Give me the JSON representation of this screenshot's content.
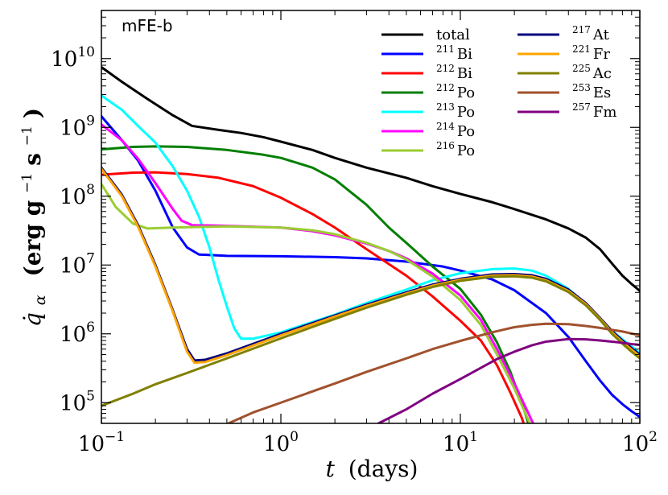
{
  "chart_data": {
    "type": "line",
    "panel_label": "mFE-b",
    "xlabel": {
      "var": "t",
      "unit": "(days)"
    },
    "ylabel": {
      "var": "q̇",
      "sub": "α",
      "unit_parts": [
        "(erg g",
        "−1",
        " s",
        "−1",
        ")"
      ]
    },
    "x_scale": "log",
    "y_scale": "log",
    "xlim": [
      0.1,
      100
    ],
    "ylim": [
      50000,
      50000000000
    ],
    "x_ticks": [
      {
        "value": 0.1,
        "base": "10",
        "exp": "−1"
      },
      {
        "value": 1,
        "base": "10",
        "exp": "0"
      },
      {
        "value": 10,
        "base": "10",
        "exp": "1"
      },
      {
        "value": 100,
        "base": "10",
        "exp": "2"
      }
    ],
    "y_ticks": [
      {
        "value": 100000,
        "base": "10",
        "exp": "5"
      },
      {
        "value": 1000000,
        "base": "10",
        "exp": "6"
      },
      {
        "value": 10000000,
        "base": "10",
        "exp": "7"
      },
      {
        "value": 100000000,
        "base": "10",
        "exp": "8"
      },
      {
        "value": 1000000000,
        "base": "10",
        "exp": "9"
      },
      {
        "value": 10000000000,
        "base": "10",
        "exp": "10"
      }
    ],
    "grid": false,
    "legend_position": "top-right",
    "series": [
      {
        "name": "total",
        "sup": "",
        "el": "",
        "color": "#000000",
        "points": [
          [
            0.1,
            7500000000.0
          ],
          [
            0.13,
            4600000000.0
          ],
          [
            0.18,
            2600000000.0
          ],
          [
            0.25,
            1500000000.0
          ],
          [
            0.32,
            1050000000.0
          ],
          [
            0.45,
            920000000.0
          ],
          [
            0.6,
            830000000.0
          ],
          [
            0.8,
            720000000.0
          ],
          [
            1,
            620000000.0
          ],
          [
            1.5,
            470000000.0
          ],
          [
            2,
            360000000.0
          ],
          [
            3,
            260000000.0
          ],
          [
            5,
            185000000.0
          ],
          [
            7,
            140000000.0
          ],
          [
            10,
            108000000.0
          ],
          [
            15,
            82000000.0
          ],
          [
            20,
            65000000.0
          ],
          [
            30,
            46000000.0
          ],
          [
            40,
            34000000.0
          ],
          [
            50,
            25000000.0
          ],
          [
            60,
            17000000.0
          ],
          [
            70,
            10500000.0
          ],
          [
            80,
            7000000.0
          ],
          [
            90,
            5300000.0
          ],
          [
            100,
            4200000.0
          ]
        ]
      },
      {
        "name": "",
        "sup": "211",
        "el": "Bi",
        "color": "#0000ff",
        "points": [
          [
            0.1,
            1450000000.0
          ],
          [
            0.13,
            650000000.0
          ],
          [
            0.16,
            330000000.0
          ],
          [
            0.2,
            120000000.0
          ],
          [
            0.25,
            35000000.0
          ],
          [
            0.3,
            18000000.0
          ],
          [
            0.35,
            14200000.0
          ],
          [
            0.5,
            13600000.0
          ],
          [
            1,
            13400000.0
          ],
          [
            2,
            13000000.0
          ],
          [
            3,
            12500000.0
          ],
          [
            5,
            11200000.0
          ],
          [
            8,
            9500000.0
          ],
          [
            10,
            8300000.0
          ],
          [
            15,
            6200000.0
          ],
          [
            20,
            4300000.0
          ],
          [
            30,
            2000000.0
          ],
          [
            40,
            900000.0
          ],
          [
            50,
            400000.0
          ],
          [
            60,
            210000.0
          ],
          [
            70,
            130000.0
          ],
          [
            80,
            95000.0
          ],
          [
            90,
            75000.0
          ],
          [
            100,
            62000.0
          ]
        ]
      },
      {
        "name": "",
        "sup": "212",
        "el": "Bi",
        "color": "#ff0000",
        "points": [
          [
            0.1,
            205000000.0
          ],
          [
            0.15,
            220000000.0
          ],
          [
            0.2,
            222000000.0
          ],
          [
            0.3,
            210000000.0
          ],
          [
            0.45,
            185000000.0
          ],
          [
            0.7,
            140000000.0
          ],
          [
            1,
            95000000.0
          ],
          [
            1.5,
            55000000.0
          ],
          [
            2,
            35000000.0
          ],
          [
            3,
            17000000.0
          ],
          [
            5,
            7000000.0
          ],
          [
            7,
            3500000.0
          ],
          [
            10,
            1550000.0
          ],
          [
            13,
            800000.0
          ],
          [
            16,
            350000.0
          ],
          [
            19,
            140000.0
          ],
          [
            22,
            60000.0
          ],
          [
            24,
            30000.0
          ]
        ]
      },
      {
        "name": "",
        "sup": "212",
        "el": "Po",
        "color": "#007f00",
        "points": [
          [
            0.1,
            480000000.0
          ],
          [
            0.15,
            520000000.0
          ],
          [
            0.2,
            530000000.0
          ],
          [
            0.3,
            520000000.0
          ],
          [
            0.5,
            470000000.0
          ],
          [
            0.8,
            400000000.0
          ],
          [
            1,
            360000000.0
          ],
          [
            1.5,
            260000000.0
          ],
          [
            2,
            175000000.0
          ],
          [
            3,
            75000000.0
          ],
          [
            4,
            35000000.0
          ],
          [
            5,
            21000000.0
          ],
          [
            7,
            9500000.0
          ],
          [
            10,
            4500000.0
          ],
          [
            13,
            1900000.0
          ],
          [
            16,
            750000.0
          ],
          [
            19,
            280000.0
          ],
          [
            22,
            100000.0
          ],
          [
            25,
            35000.0
          ]
        ]
      },
      {
        "name": "",
        "sup": "213",
        "el": "Po",
        "color": "#00ffff",
        "points": [
          [
            0.1,
            2900000000.0
          ],
          [
            0.13,
            1800000000.0
          ],
          [
            0.16,
            1050000000.0
          ],
          [
            0.2,
            600000000.0
          ],
          [
            0.25,
            270000000.0
          ],
          [
            0.3,
            120000000.0
          ],
          [
            0.35,
            50000000.0
          ],
          [
            0.4,
            18000000.0
          ],
          [
            0.45,
            6000000.0
          ],
          [
            0.5,
            2500000.0
          ],
          [
            0.55,
            1200000.0
          ],
          [
            0.6,
            850000.0
          ],
          [
            0.7,
            850000.0
          ],
          [
            1,
            1050000.0
          ],
          [
            2,
            1900000.0
          ],
          [
            3,
            2800000.0
          ],
          [
            5,
            4400000.0
          ],
          [
            7,
            6000000.0
          ],
          [
            10,
            7600000.0
          ],
          [
            15,
            8700000.0
          ],
          [
            20,
            8900000.0
          ],
          [
            25,
            8300000.0
          ],
          [
            30,
            7000000.0
          ],
          [
            40,
            4500000.0
          ],
          [
            50,
            2700000.0
          ],
          [
            60,
            1600000.0
          ],
          [
            70,
            1100000.0
          ],
          [
            80,
            830000.0
          ],
          [
            90,
            650000.0
          ],
          [
            100,
            530000.0
          ]
        ]
      },
      {
        "name": "",
        "sup": "214",
        "el": "Po",
        "color": "#ff00ff",
        "points": [
          [
            0.1,
            1100000000.0
          ],
          [
            0.13,
            650000000.0
          ],
          [
            0.16,
            350000000.0
          ],
          [
            0.2,
            155000000.0
          ],
          [
            0.25,
            65000000.0
          ],
          [
            0.28,
            44000000.0
          ],
          [
            0.32,
            38000000.0
          ],
          [
            0.5,
            37000000.0
          ],
          [
            1,
            35000000.0
          ],
          [
            1.5,
            31000000.0
          ],
          [
            2,
            27000000.0
          ],
          [
            3,
            20500000.0
          ],
          [
            4,
            16000000.0
          ],
          [
            5,
            12500000.0
          ],
          [
            7,
            7500000.0
          ],
          [
            10,
            3600000.0
          ],
          [
            13,
            1600000.0
          ],
          [
            16,
            600000.0
          ],
          [
            20,
            190000.0
          ],
          [
            25,
            55000.0
          ],
          [
            28,
            30000.0
          ]
        ]
      },
      {
        "name": "",
        "sup": "216",
        "el": "Po",
        "color": "#9acd32",
        "points": [
          [
            0.1,
            150000000.0
          ],
          [
            0.12,
            70000000.0
          ],
          [
            0.15,
            40000000.0
          ],
          [
            0.18,
            34000000.0
          ],
          [
            0.25,
            35000000.0
          ],
          [
            0.5,
            36500000.0
          ],
          [
            1,
            35000000.0
          ],
          [
            1.5,
            32000000.0
          ],
          [
            2,
            28000000.0
          ],
          [
            3,
            21000000.0
          ],
          [
            4,
            16000000.0
          ],
          [
            5,
            12000000.0
          ],
          [
            7,
            6800000.0
          ],
          [
            10,
            3100000.0
          ],
          [
            13,
            1350000.0
          ],
          [
            16,
            500000.0
          ],
          [
            20,
            160000.0
          ],
          [
            24,
            55000.0
          ],
          [
            27,
            30000.0
          ]
        ]
      },
      {
        "name": "",
        "sup": "217",
        "el": "At",
        "color": "#00007f",
        "points": [
          [
            0.1,
            260000000.0
          ],
          [
            0.13,
            105000000.0
          ],
          [
            0.16,
            38000000.0
          ],
          [
            0.2,
            10000000.0
          ],
          [
            0.25,
            2200000.0
          ],
          [
            0.3,
            600000.0
          ],
          [
            0.33,
            410000.0
          ],
          [
            0.38,
            420000.0
          ],
          [
            0.5,
            520000.0
          ],
          [
            1,
            1000000.0
          ],
          [
            2,
            1850000.0
          ],
          [
            3,
            2650000.0
          ],
          [
            5,
            4000000.0
          ],
          [
            7,
            5200000.0
          ],
          [
            10,
            6300000.0
          ],
          [
            15,
            7300000.0
          ],
          [
            20,
            7400000.0
          ],
          [
            25,
            7100000.0
          ],
          [
            30,
            6300000.0
          ],
          [
            40,
            4400000.0
          ],
          [
            50,
            2800000.0
          ],
          [
            60,
            1700000.0
          ],
          [
            70,
            1100000.0
          ],
          [
            80,
            800000.0
          ],
          [
            90,
            620000.0
          ],
          [
            100,
            500000.0
          ]
        ]
      },
      {
        "name": "",
        "sup": "221",
        "el": "Fr",
        "color": "#ffa500",
        "points": [
          [
            0.1,
            250000000.0
          ],
          [
            0.13,
            100000000.0
          ],
          [
            0.16,
            36000000.0
          ],
          [
            0.2,
            9500000.0
          ],
          [
            0.25,
            2100000.0
          ],
          [
            0.3,
            550000.0
          ],
          [
            0.33,
            380000.0
          ],
          [
            0.38,
            390000.0
          ],
          [
            0.5,
            490000.0
          ],
          [
            1,
            950000.0
          ],
          [
            2,
            1780000.0
          ],
          [
            3,
            2550000.0
          ],
          [
            5,
            3850000.0
          ],
          [
            7,
            5000000.0
          ],
          [
            10,
            6100000.0
          ],
          [
            15,
            7000000.0
          ],
          [
            20,
            7100000.0
          ],
          [
            25,
            6800000.0
          ],
          [
            30,
            6000000.0
          ],
          [
            40,
            4200000.0
          ],
          [
            50,
            2700000.0
          ],
          [
            60,
            1650000.0
          ],
          [
            70,
            1050000.0
          ],
          [
            80,
            760000.0
          ],
          [
            90,
            590000.0
          ],
          [
            100,
            470000.0
          ]
        ]
      },
      {
        "name": "",
        "sup": "225",
        "el": "Ac",
        "color": "#808000",
        "points": [
          [
            0.1,
            90000.0
          ],
          [
            0.15,
            135000.0
          ],
          [
            0.2,
            185000.0
          ],
          [
            0.3,
            270000.0
          ],
          [
            0.5,
            440000.0
          ],
          [
            1,
            860000.0
          ],
          [
            2,
            1650000.0
          ],
          [
            3,
            2400000.0
          ],
          [
            5,
            3700000.0
          ],
          [
            7,
            4800000.0
          ],
          [
            10,
            5900000.0
          ],
          [
            15,
            6750000.0
          ],
          [
            20,
            6850000.0
          ],
          [
            25,
            6550000.0
          ],
          [
            30,
            5800000.0
          ],
          [
            40,
            4050000.0
          ],
          [
            50,
            2600000.0
          ],
          [
            60,
            1600000.0
          ],
          [
            70,
            1000000.0
          ],
          [
            80,
            720000.0
          ],
          [
            90,
            550000.0
          ],
          [
            100,
            440000.0
          ]
        ]
      },
      {
        "name": "",
        "sup": "253",
        "el": "Es",
        "color": "#a0522d",
        "points": [
          [
            0.51,
            50000.0
          ],
          [
            0.7,
            72000.0
          ],
          [
            1,
            100000.0
          ],
          [
            2,
            190000.0
          ],
          [
            3,
            280000.0
          ],
          [
            5,
            440000.0
          ],
          [
            7,
            600000.0
          ],
          [
            10,
            790000.0
          ],
          [
            15,
            1050000.0
          ],
          [
            20,
            1250000.0
          ],
          [
            25,
            1350000.0
          ],
          [
            30,
            1400000.0
          ],
          [
            40,
            1380000.0
          ],
          [
            50,
            1300000.0
          ],
          [
            60,
            1220000.0
          ],
          [
            80,
            1080000.0
          ],
          [
            100,
            950000.0
          ]
        ]
      },
      {
        "name": "",
        "sup": "257",
        "el": "Fm",
        "color": "#800080",
        "points": [
          [
            3.5,
            50000.0
          ],
          [
            5,
            80000.0
          ],
          [
            7,
            135000.0
          ],
          [
            10,
            220000.0
          ],
          [
            13,
            320000.0
          ],
          [
            16,
            430000.0
          ],
          [
            20,
            550000.0
          ],
          [
            25,
            680000.0
          ],
          [
            30,
            770000.0
          ],
          [
            40,
            840000.0
          ],
          [
            50,
            830000.0
          ],
          [
            60,
            800000.0
          ],
          [
            70,
            770000.0
          ],
          [
            80,
            740000.0
          ],
          [
            90,
            710000.0
          ],
          [
            100,
            690000.0
          ]
        ]
      }
    ]
  }
}
